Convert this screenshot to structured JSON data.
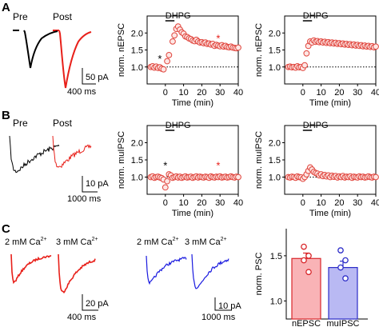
{
  "panels": {
    "A": {
      "label": "A"
    },
    "B": {
      "label": "B"
    },
    "C": {
      "label": "C"
    }
  },
  "traces": {
    "pre_label": "Pre",
    "post_label": "Post",
    "scale_A_amp": "50 pA",
    "scale_A_time": "400 ms",
    "scale_B_amp": "10 pA",
    "scale_B_time": "1000 ms",
    "scale_C1_amp": "20 pA",
    "scale_C1_time": "400 ms",
    "scale_C2_amp": "10 pA",
    "scale_C2_time": "1000 ms",
    "ca_2mM_main": "2 mM Ca",
    "ca_3mM_main": "3 mM Ca",
    "ca_sup": "2+"
  },
  "colors": {
    "pre": "#000000",
    "post": "#e8201a",
    "blue": "#1a1adf",
    "marker_edge": "#e0453d",
    "marker_fill": "#fde6e4",
    "bar_nepsc_fill": "#f9b3b6",
    "bar_nepsc_edge": "#d9262a",
    "bar_mupsc_fill": "#b9b9f3",
    "bar_mupsc_edge": "#2c2cc8",
    "star_red": "#e8201a",
    "star_black": "#000000"
  },
  "chart_data": [
    {
      "type": "scatter",
      "id": "A1",
      "xlabel": "Time (min)",
      "ylabel": "norm. nEPSC",
      "xlim": [
        -10,
        40
      ],
      "ylim": [
        0.5,
        2.5
      ],
      "xticks": [
        "0",
        "10",
        "20",
        "30",
        "40"
      ],
      "yticks": [
        "1.0",
        "1.5",
        "2.0"
      ],
      "drug_label": "DHPG",
      "drug_start": 0,
      "drug_end": 5,
      "baseline": 1.0,
      "stars": [
        {
          "x": -3,
          "y": 1.25,
          "color": "black"
        },
        {
          "x": 29,
          "y": 1.85,
          "color": "red"
        }
      ],
      "x": [
        -8,
        -7,
        -6,
        -5,
        -4,
        -3,
        -2,
        -1,
        1,
        2,
        4,
        5,
        6,
        7,
        8,
        9,
        10,
        11,
        12,
        13,
        14,
        15,
        16,
        17,
        18,
        19,
        20,
        21,
        22,
        23,
        24,
        25,
        26,
        27,
        28,
        29,
        30,
        31,
        32,
        33,
        34,
        35,
        36,
        37,
        38,
        39,
        40
      ],
      "y": [
        1.0,
        1.02,
        0.98,
        1.01,
        0.97,
        0.99,
        0.95,
        0.93,
        1.17,
        1.35,
        1.75,
        1.93,
        2.12,
        2.19,
        2.1,
        2.02,
        1.98,
        1.9,
        1.88,
        1.84,
        1.82,
        1.78,
        1.76,
        1.8,
        1.75,
        1.72,
        1.73,
        1.7,
        1.72,
        1.68,
        1.69,
        1.66,
        1.68,
        1.62,
        1.65,
        1.63,
        1.61,
        1.64,
        1.6,
        1.62,
        1.59,
        1.58,
        1.6,
        1.57,
        1.56,
        1.55,
        1.57
      ]
    },
    {
      "type": "scatter",
      "id": "A2",
      "xlabel": "Time (min)",
      "ylabel": "norm. nEPSC",
      "xlim": [
        -10,
        40
      ],
      "ylim": [
        0.5,
        2.5
      ],
      "xticks": [
        "0",
        "10",
        "20",
        "30",
        "40"
      ],
      "yticks": [
        "1.0",
        "1.5",
        "2.0"
      ],
      "drug_label": "DHPG",
      "drug_start": 0,
      "drug_end": 5,
      "baseline": 1.0,
      "stars": [],
      "x": [
        -8,
        -7,
        -6,
        -5,
        -4,
        -3,
        -2,
        -1,
        0,
        1,
        2,
        3,
        4,
        5,
        6,
        7,
        8,
        9,
        10,
        11,
        12,
        13,
        14,
        15,
        16,
        17,
        18,
        19,
        20,
        21,
        22,
        23,
        24,
        25,
        26,
        27,
        28,
        29,
        30,
        31,
        32,
        33,
        34,
        35,
        36,
        37,
        38,
        39,
        40
      ],
      "y": [
        1.0,
        1.01,
        0.99,
        1.0,
        0.98,
        1.02,
        0.99,
        1.0,
        0.97,
        1.05,
        1.4,
        1.62,
        1.75,
        1.72,
        1.78,
        1.74,
        1.76,
        1.73,
        1.75,
        1.72,
        1.74,
        1.71,
        1.73,
        1.7,
        1.72,
        1.69,
        1.71,
        1.68,
        1.7,
        1.67,
        1.69,
        1.66,
        1.68,
        1.65,
        1.67,
        1.64,
        1.66,
        1.63,
        1.65,
        1.62,
        1.64,
        1.61,
        1.63,
        1.6,
        1.62,
        1.59,
        1.61,
        1.58,
        1.6
      ]
    },
    {
      "type": "scatter",
      "id": "B1",
      "xlabel": "Time (min)",
      "ylabel": "norm. muIPSC",
      "xlim": [
        -10,
        40
      ],
      "ylim": [
        0.5,
        2.5
      ],
      "xticks": [
        "0",
        "10",
        "20",
        "30",
        "40"
      ],
      "yticks": [
        "1.0",
        "1.5",
        "2.0"
      ],
      "drug_label": "DHPG",
      "drug_start": 0,
      "drug_end": 5,
      "baseline": 1.0,
      "stars": [
        {
          "x": 0,
          "y": 1.35,
          "color": "black"
        },
        {
          "x": 29,
          "y": 1.35,
          "color": "red"
        }
      ],
      "x": [
        -8,
        -7,
        -6,
        -5,
        -4,
        -3,
        -2,
        -1,
        0,
        1,
        2,
        3,
        4,
        5,
        6,
        7,
        8,
        9,
        10,
        11,
        12,
        13,
        14,
        15,
        16,
        17,
        18,
        19,
        20,
        21,
        22,
        23,
        24,
        25,
        26,
        27,
        28,
        29,
        30,
        31,
        32,
        33,
        34,
        35,
        36,
        37,
        38,
        39,
        40
      ],
      "y": [
        1.0,
        1.02,
        0.98,
        1.0,
        1.01,
        0.99,
        0.97,
        0.93,
        0.7,
        0.88,
        1.08,
        1.05,
        0.98,
        1.0,
        1.02,
        0.99,
        1.01,
        0.98,
        1.0,
        1.02,
        0.99,
        1.0,
        1.01,
        0.98,
        1.0,
        1.02,
        0.99,
        1.01,
        1.0,
        0.99,
        1.01,
        1.0,
        0.98,
        1.02,
        1.0,
        0.99,
        1.01,
        1.0,
        1.02,
        0.99,
        1.0,
        1.01,
        0.99,
        1.0,
        1.02,
        1.0,
        0.99,
        1.01,
        1.0
      ]
    },
    {
      "type": "scatter",
      "id": "B2",
      "xlabel": "Time (min)",
      "ylabel": "norm. muIPSC",
      "xlim": [
        -10,
        40
      ],
      "ylim": [
        0.5,
        2.5
      ],
      "xticks": [
        "0",
        "10",
        "20",
        "30",
        "40"
      ],
      "yticks": [
        "1.0",
        "1.5",
        "2.0"
      ],
      "drug_label": "DHPG",
      "drug_start": 0,
      "drug_end": 5,
      "baseline": 1.0,
      "stars": [],
      "x": [
        -8,
        -7,
        -6,
        -5,
        -4,
        -3,
        -2,
        -1,
        0,
        1,
        2,
        3,
        4,
        5,
        6,
        7,
        8,
        9,
        10,
        11,
        12,
        13,
        14,
        15,
        16,
        17,
        18,
        19,
        20,
        21,
        22,
        23,
        24,
        25,
        26,
        27,
        28,
        29,
        30,
        31,
        32,
        33,
        34,
        35,
        36,
        37,
        38,
        39,
        40
      ],
      "y": [
        1.0,
        0.99,
        1.01,
        1.0,
        0.98,
        1.02,
        1.0,
        0.99,
        0.95,
        1.0,
        1.08,
        1.18,
        1.28,
        1.22,
        1.15,
        1.12,
        1.1,
        1.05,
        1.08,
        1.03,
        1.06,
        1.02,
        1.05,
        1.0,
        1.04,
        1.01,
        1.03,
        0.99,
        1.02,
        1.0,
        1.03,
        0.99,
        1.01,
        1.0,
        1.02,
        0.98,
        1.01,
        1.0,
        0.99,
        1.02,
        1.0,
        1.01,
        0.99,
        1.0,
        1.02,
        1.0,
        0.99,
        1.01,
        1.0
      ]
    },
    {
      "type": "bar",
      "id": "C3",
      "ylabel": "norm. PSC",
      "ylim": [
        0.8,
        1.8
      ],
      "yticks": [
        "1.0",
        "1.5"
      ],
      "categories": [
        "nEPSC",
        "muIPSC"
      ],
      "values": [
        1.47,
        1.37
      ],
      "errors": [
        0.06,
        0.07
      ],
      "individual_points": [
        [
          1.6,
          1.5,
          1.45,
          1.32
        ],
        [
          1.56,
          1.45,
          1.37,
          1.25
        ]
      ]
    }
  ]
}
